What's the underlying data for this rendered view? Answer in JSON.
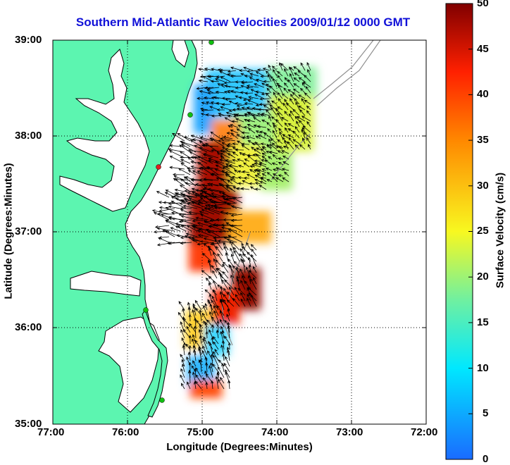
{
  "title": "Southern Mid-Atlantic Raw Velocities 2009/01/12 0000 GMT",
  "x_axis": {
    "label": "Longitude (Degrees:Minutes)",
    "ticks": [
      "77:00",
      "76:00",
      "75:00",
      "74:00",
      "73:00",
      "72:00"
    ]
  },
  "y_axis": {
    "label": "Latitude (Degrees:Minutes)",
    "ticks": [
      "39:00",
      "38:00",
      "37:00",
      "36:00",
      "35:00"
    ]
  },
  "colorbar": {
    "label": "Surface Velocity (cm/s)",
    "ticks": [
      "50",
      "45",
      "40",
      "35",
      "30",
      "25",
      "20",
      "15",
      "10",
      "5",
      "0"
    ],
    "min": 0,
    "max": 50,
    "colors": [
      "#1a6bff",
      "#00e8ff",
      "#70f0a0",
      "#f8f820",
      "#ff8800",
      "#ff2000",
      "#800000"
    ]
  },
  "colors": {
    "land": "#5cf5b0",
    "coastline": "#000000",
    "isobath": "#909090",
    "title": "#1010d8",
    "station_active": "#10c010",
    "station_inactive": "#e02020"
  },
  "map": {
    "lon_range": [
      -77,
      -72
    ],
    "lat_range": [
      35,
      39
    ],
    "grid": true
  }
}
